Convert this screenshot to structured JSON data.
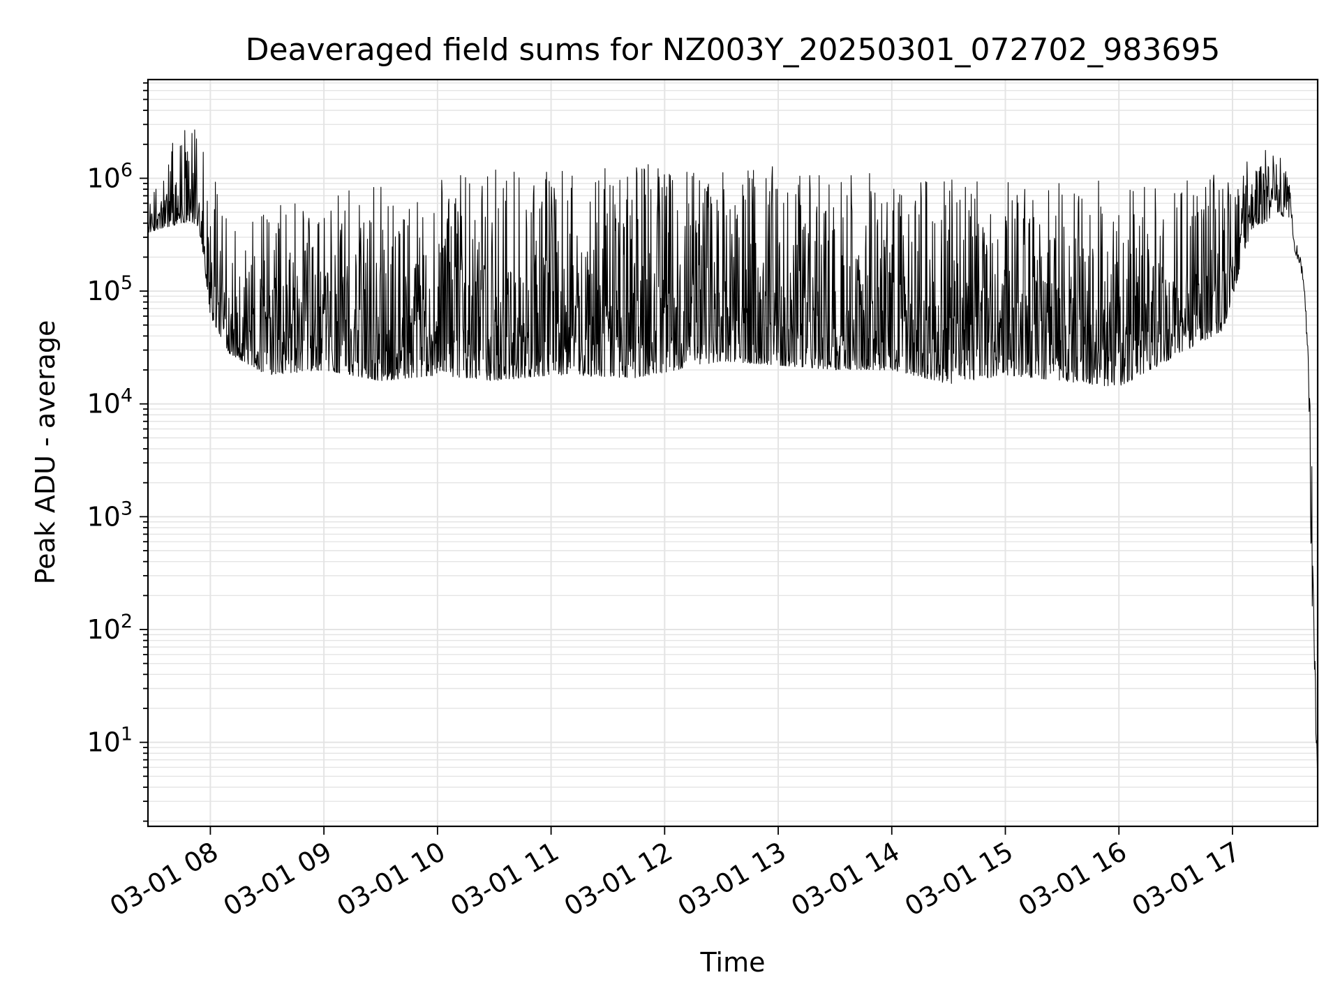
{
  "chart_data": {
    "type": "line",
    "title": "Deaveraged field sums for NZ003Y_20250301_072702_983695",
    "xlabel": "Time",
    "ylabel": "Peak ADU - average",
    "yscale": "log",
    "ylim": [
      1.8,
      7500000
    ],
    "xlim": [
      "2025-03-01 07:27:02",
      "2025-03-01 17:45:00"
    ],
    "grid": true,
    "line_color": "#000000",
    "grid_color": "#e4e4e4",
    "x_ticks": [
      {
        "t": "2025-03-01 08:00",
        "label": "03-01 08"
      },
      {
        "t": "2025-03-01 09:00",
        "label": "03-01 09"
      },
      {
        "t": "2025-03-01 10:00",
        "label": "03-01 10"
      },
      {
        "t": "2025-03-01 11:00",
        "label": "03-01 11"
      },
      {
        "t": "2025-03-01 12:00",
        "label": "03-01 12"
      },
      {
        "t": "2025-03-01 13:00",
        "label": "03-01 13"
      },
      {
        "t": "2025-03-01 14:00",
        "label": "03-01 14"
      },
      {
        "t": "2025-03-01 15:00",
        "label": "03-01 15"
      },
      {
        "t": "2025-03-01 16:00",
        "label": "03-01 16"
      },
      {
        "t": "2025-03-01 17:00",
        "label": "03-01 17"
      }
    ],
    "y_ticks": [
      {
        "value": 10,
        "base": "10",
        "exp": "1"
      },
      {
        "value": 100,
        "base": "10",
        "exp": "2"
      },
      {
        "value": 1000,
        "base": "10",
        "exp": "3"
      },
      {
        "value": 10000,
        "base": "10",
        "exp": "4"
      },
      {
        "value": 100000,
        "base": "10",
        "exp": "5"
      },
      {
        "value": 1000000,
        "base": "10",
        "exp": "6"
      }
    ],
    "series": [
      {
        "envelope": [
          {
            "t": "2025-03-01 07:27",
            "low": 330000,
            "high": 560000
          },
          {
            "t": "2025-03-01 07:40",
            "low": 380000,
            "high": 2200000
          },
          {
            "t": "2025-03-01 07:50",
            "low": 420000,
            "high": 3500000
          },
          {
            "t": "2025-03-01 07:55",
            "low": 300000,
            "high": 3800000
          },
          {
            "t": "2025-03-01 08:00",
            "low": 60000,
            "high": 1200000
          },
          {
            "t": "2025-03-01 08:10",
            "low": 28000,
            "high": 800000
          },
          {
            "t": "2025-03-01 08:30",
            "low": 18000,
            "high": 700000
          },
          {
            "t": "2025-03-01 09:00",
            "low": 20000,
            "high": 800000
          },
          {
            "t": "2025-03-01 09:30",
            "low": 16000,
            "high": 900000
          },
          {
            "t": "2025-03-01 10:00",
            "low": 18000,
            "high": 1000000
          },
          {
            "t": "2025-03-01 10:30",
            "low": 16000,
            "high": 1200000
          },
          {
            "t": "2025-03-01 11:00",
            "low": 18000,
            "high": 1200000
          },
          {
            "t": "2025-03-01 11:45",
            "low": 17000,
            "high": 1400000
          },
          {
            "t": "2025-03-01 12:30",
            "low": 24000,
            "high": 1250000
          },
          {
            "t": "2025-03-01 13:00",
            "low": 22000,
            "high": 1300000
          },
          {
            "t": "2025-03-01 13:30",
            "low": 20000,
            "high": 1150000
          },
          {
            "t": "2025-03-01 14:00",
            "low": 20000,
            "high": 1100000
          },
          {
            "t": "2025-03-01 14:30",
            "low": 15000,
            "high": 1050000
          },
          {
            "t": "2025-03-01 15:00",
            "low": 18000,
            "high": 1000000
          },
          {
            "t": "2025-03-01 15:30",
            "low": 16000,
            "high": 950000
          },
          {
            "t": "2025-03-01 16:00",
            "low": 14000,
            "high": 950000
          },
          {
            "t": "2025-03-01 16:55",
            "low": 45000,
            "high": 1100000
          },
          {
            "t": "2025-03-01 17:10",
            "low": 350000,
            "high": 1600000
          },
          {
            "t": "2025-03-01 17:25",
            "low": 480000,
            "high": 2100000
          },
          {
            "t": "2025-03-01 17:30",
            "low": 420000,
            "high": 900000
          },
          {
            "t": "2025-03-01 17:33",
            "low": 140000,
            "high": 320000
          },
          {
            "t": "2025-03-01 17:36",
            "low": 130000,
            "high": 200000
          },
          {
            "t": "2025-03-01 17:38",
            "low": 70000,
            "high": 120000
          },
          {
            "t": "2025-03-01 17:40",
            "low": 10000,
            "high": 30000
          },
          {
            "t": "2025-03-01 17:42",
            "low": 3.8,
            "high": 3000
          },
          {
            "t": "2025-03-01 17:45",
            "low": 3.8,
            "high": 4.5
          }
        ]
      }
    ]
  }
}
